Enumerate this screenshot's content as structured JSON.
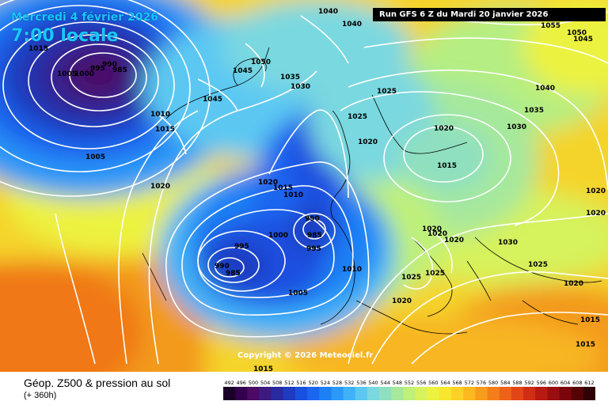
{
  "overlay": {
    "date": "Mercredi 4 février 2026",
    "time": "7:00 locale",
    "run": "Run GFS 6 Z du Mardi 20 janvier 2026",
    "copyright": "Copyright © 2026 Meteociel.fr"
  },
  "footer": {
    "title": "Géop. Z500 & pression au sol",
    "subtitle": "(+ 360h)"
  },
  "scale": {
    "labels": [
      "492",
      "496",
      "500",
      "504",
      "508",
      "512",
      "516",
      "520",
      "524",
      "528",
      "532",
      "536",
      "540",
      "544",
      "548",
      "552",
      "556",
      "560",
      "564",
      "568",
      "572",
      "576",
      "580",
      "584",
      "588",
      "592",
      "596",
      "600",
      "604",
      "608",
      "612"
    ],
    "colors": [
      "#1a0026",
      "#33004d",
      "#4c0a66",
      "#3d1a80",
      "#2a2aa0",
      "#1f3cc0",
      "#1a50e0",
      "#1a66f0",
      "#1e80f5",
      "#2a99f7",
      "#3fb2f8",
      "#5cc8f2",
      "#7ad8e0",
      "#8fe0c0",
      "#a6e89c",
      "#bff07a",
      "#d6f25c",
      "#ecf23f",
      "#f7e52e",
      "#fcd126",
      "#fbb81f",
      "#f89c1c",
      "#f47f1a",
      "#ee6218",
      "#e24616",
      "#d02d14",
      "#b81a12",
      "#9a0e10",
      "#7a060c",
      "#560308",
      "#300104"
    ]
  },
  "isobars": [
    {
      "value": "1005",
      "kind": "low"
    },
    {
      "value": "1000",
      "kind": "low"
    },
    {
      "value": "995",
      "kind": "low"
    },
    {
      "value": "990",
      "kind": "low"
    },
    {
      "value": "985",
      "kind": "low"
    },
    {
      "value": "1015",
      "kind": "n"
    },
    {
      "value": "1010",
      "kind": "n"
    },
    {
      "value": "1015",
      "kind": "n"
    },
    {
      "value": "1005",
      "kind": "n"
    },
    {
      "value": "1020",
      "kind": "n"
    },
    {
      "value": "1040",
      "kind": "high"
    },
    {
      "value": "1040",
      "kind": "high"
    },
    {
      "value": "1050",
      "kind": "high"
    },
    {
      "value": "1045",
      "kind": "high"
    },
    {
      "value": "1045",
      "kind": "high"
    },
    {
      "value": "1035",
      "kind": "high"
    },
    {
      "value": "1030",
      "kind": "n"
    },
    {
      "value": "1025",
      "kind": "n"
    },
    {
      "value": "1025",
      "kind": "n"
    },
    {
      "value": "1020",
      "kind": "n"
    },
    {
      "value": "1020",
      "kind": "n"
    },
    {
      "value": "1015",
      "kind": "n"
    },
    {
      "value": "1030",
      "kind": "n"
    },
    {
      "value": "1035",
      "kind": "n"
    },
    {
      "value": "1040",
      "kind": "n"
    },
    {
      "value": "1055",
      "kind": "high"
    },
    {
      "value": "1050",
      "kind": "high"
    },
    {
      "value": "1045",
      "kind": "high"
    },
    {
      "value": "1020",
      "kind": "n"
    },
    {
      "value": "1020",
      "kind": "n"
    },
    {
      "value": "1015",
      "kind": "n"
    },
    {
      "value": "1010",
      "kind": "n"
    },
    {
      "value": "990",
      "kind": "low"
    },
    {
      "value": "985",
      "kind": "low"
    },
    {
      "value": "995",
      "kind": "low"
    },
    {
      "value": "1000",
      "kind": "low"
    },
    {
      "value": "995",
      "kind": "low"
    },
    {
      "value": "990",
      "kind": "low"
    },
    {
      "value": "985",
      "kind": "low"
    },
    {
      "value": "1010",
      "kind": "n"
    },
    {
      "value": "1005",
      "kind": "n"
    },
    {
      "value": "1020",
      "kind": "n"
    },
    {
      "value": "1020",
      "kind": "n"
    },
    {
      "value": "1020",
      "kind": "n"
    },
    {
      "value": "1020",
      "kind": "n"
    },
    {
      "value": "1025",
      "kind": "n"
    },
    {
      "value": "1025",
      "kind": "n"
    },
    {
      "value": "1030",
      "kind": "n"
    },
    {
      "value": "1025",
      "kind": "n"
    },
    {
      "value": "1020",
      "kind": "n"
    },
    {
      "value": "1020",
      "kind": "n"
    },
    {
      "value": "1015",
      "kind": "n"
    },
    {
      "value": "1015",
      "kind": "n"
    },
    {
      "value": "1015",
      "kind": "n"
    }
  ]
}
